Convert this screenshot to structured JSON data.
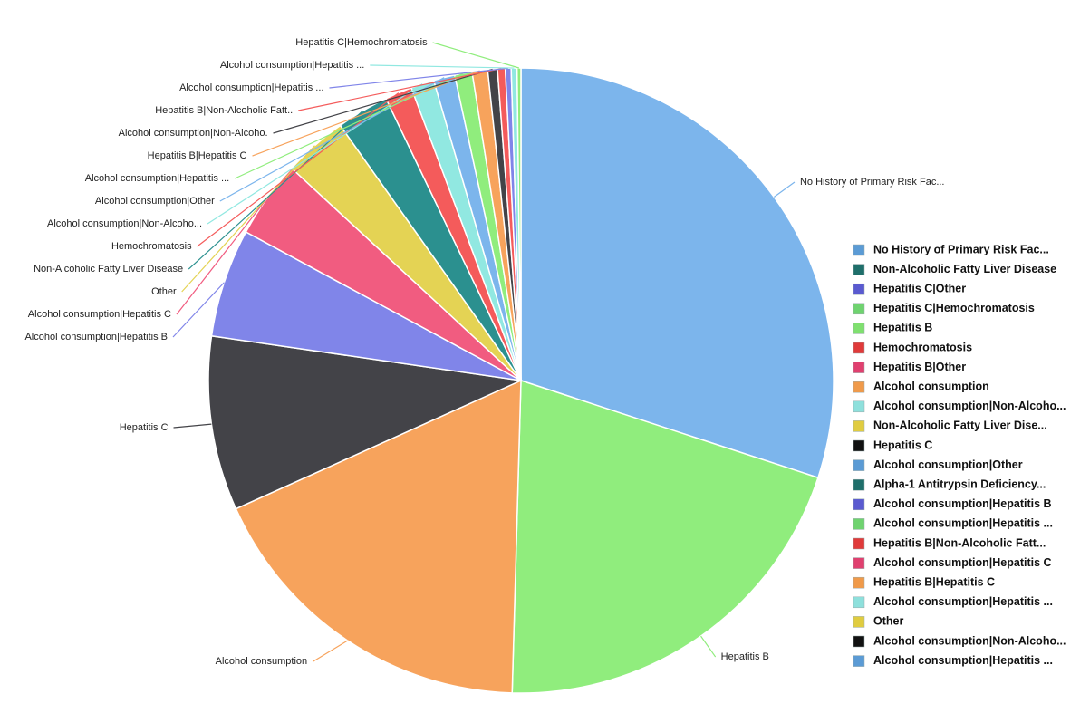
{
  "chart_data": {
    "type": "pie",
    "categories": [
      "No History of Primary Risk Fac...",
      "Hepatitis B",
      "Alcohol consumption",
      "Hepatitis C",
      "Alcohol consumption|Hepatitis B",
      "Alcohol consumption|Hepatitis C",
      "Other",
      "Non-Alcoholic Fatty Liver Disease",
      "Hemochromatosis",
      "Alcohol consumption|Non-Alcoho...",
      "Alcohol consumption|Other",
      "Alcohol consumption|Hepatitis ...",
      "Hepatitis B|Hepatitis C",
      "Alcohol consumption|Non-Alcoho.",
      "Hepatitis B|Non-Alcoholic Fatt..",
      "Alcohol consumption|Hepatitis ...",
      "Alcohol consumption|Hepatitis ...",
      "Hepatitis C|Hemochromatosis"
    ],
    "values": [
      30,
      20.4,
      17.8,
      9.0,
      5.6,
      4.0,
      3.3,
      2.7,
      1.4,
      1.2,
      1.1,
      0.9,
      0.8,
      0.5,
      0.4,
      0.3,
      0.3,
      0.2
    ],
    "colors": [
      "#7cb5ec",
      "#90ed7d",
      "#f7a35c",
      "#434348",
      "#8085e9",
      "#f15c80",
      "#e4d354",
      "#2b908f",
      "#f45b5b",
      "#91e8e1",
      "#7cb5ec",
      "#90ed7d",
      "#f7a35c",
      "#434348",
      "#f45b5b",
      "#8085e9",
      "#91e8e1",
      "#90ed7d"
    ],
    "legend": [
      {
        "name": "No History of Primary Risk Fac...",
        "color": "#5b9bd5"
      },
      {
        "name": "Non-Alcoholic Fatty Liver Disease",
        "color": "#1f6f6b"
      },
      {
        "name": "Hepatitis C|Other",
        "color": "#5a5ad0"
      },
      {
        "name": "Hepatitis C|Hemochromatosis",
        "color": "#6fd36f"
      },
      {
        "name": "Hepatitis B",
        "color": "#7fe06f"
      },
      {
        "name": "Hemochromatosis",
        "color": "#e03a3a"
      },
      {
        "name": "Hepatitis B|Other",
        "color": "#e0406f"
      },
      {
        "name": "Alcohol consumption",
        "color": "#f09a4a"
      },
      {
        "name": "Alcohol consumption|Non-Alcoho...",
        "color": "#8ee0dc"
      },
      {
        "name": "Non-Alcoholic Fatty Liver Dise...",
        "color": "#e0cc40"
      },
      {
        "name": "Hepatitis C",
        "color": "#111111"
      },
      {
        "name": "Alcohol consumption|Other",
        "color": "#5b9bd5"
      },
      {
        "name": "Alpha-1 Antitrypsin Deficiency...",
        "color": "#1f6f6b"
      },
      {
        "name": "Alcohol consumption|Hepatitis B",
        "color": "#5a5ad0"
      },
      {
        "name": "Alcohol consumption|Hepatitis ...",
        "color": "#6fd36f"
      },
      {
        "name": "Hepatitis B|Non-Alcoholic Fatt...",
        "color": "#e03a3a"
      },
      {
        "name": "Alcohol consumption|Hepatitis C",
        "color": "#e0406f"
      },
      {
        "name": "Hepatitis B|Hepatitis C",
        "color": "#f09a4a"
      },
      {
        "name": "Alcohol consumption|Hepatitis ...",
        "color": "#8ee0dc"
      },
      {
        "name": "Other",
        "color": "#e0cc40"
      },
      {
        "name": "Alcohol consumption|Non-Alcoho...",
        "color": "#111111"
      },
      {
        "name": "Alcohol consumption|Hepatitis ...",
        "color": "#5b9bd5"
      }
    ]
  }
}
